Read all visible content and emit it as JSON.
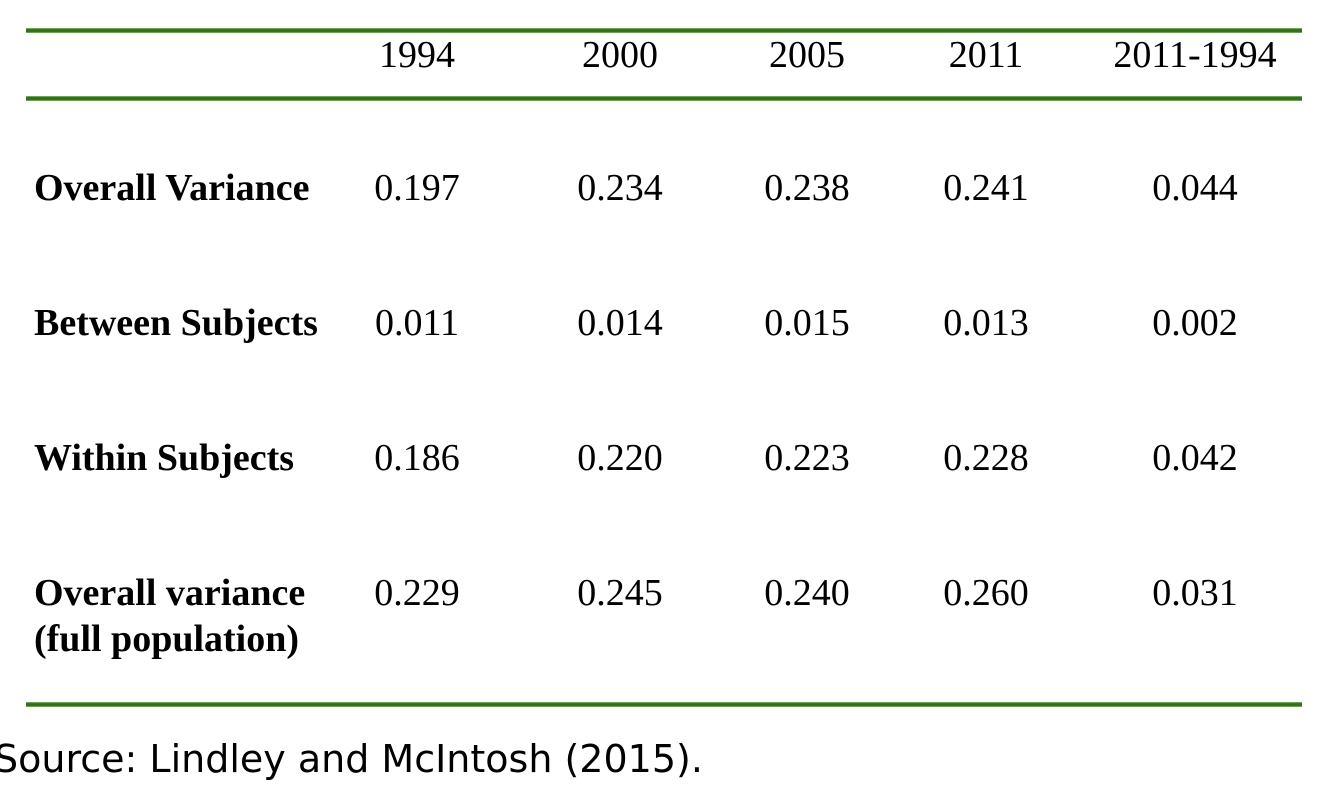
{
  "colors": {
    "rule_green": "#38761d",
    "background": "#ffffff",
    "text": "#000000"
  },
  "table": {
    "columns": [
      "1994",
      "2000",
      "2005",
      "2011",
      "2011-1994"
    ],
    "rows": [
      {
        "label": "Overall Variance",
        "label_line2": "",
        "values": [
          "0.197",
          "0.234",
          "0.238",
          "0.241",
          "0.044"
        ]
      },
      {
        "label": "Between Subjects",
        "label_line2": "",
        "values": [
          "0.011",
          "0.014",
          "0.015",
          "0.013",
          "0.002"
        ]
      },
      {
        "label": "Within Subjects",
        "label_line2": "",
        "values": [
          "0.186",
          "0.220",
          "0.223",
          "0.228",
          "0.042"
        ]
      },
      {
        "label": "Overall variance",
        "label_line2": "(full population)",
        "values": [
          "0.229",
          "0.245",
          "0.240",
          "0.260",
          "0.031"
        ]
      }
    ]
  },
  "source": {
    "text": "Source: Lindley and McIntosh (2015)."
  },
  "chart_data": {
    "type": "table",
    "title": "",
    "columns": [
      "",
      "1994",
      "2000",
      "2005",
      "2011",
      "2011-1994"
    ],
    "rows": [
      [
        "Overall Variance",
        0.197,
        0.234,
        0.238,
        0.241,
        0.044
      ],
      [
        "Between Subjects",
        0.011,
        0.014,
        0.015,
        0.013,
        0.002
      ],
      [
        "Within Subjects",
        0.186,
        0.22,
        0.223,
        0.228,
        0.042
      ],
      [
        "Overall variance (full population)",
        0.229,
        0.245,
        0.24,
        0.26,
        0.031
      ]
    ],
    "source": "Lindley and McIntosh (2015)"
  }
}
